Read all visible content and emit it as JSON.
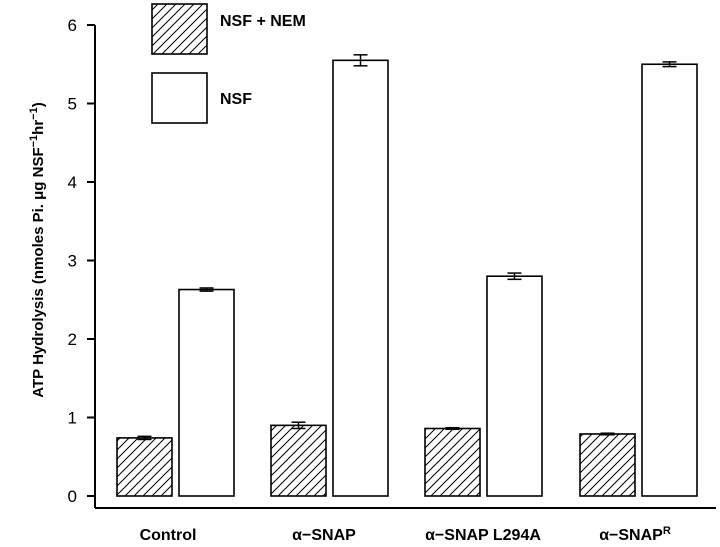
{
  "chart_data": {
    "type": "bar",
    "categories": [
      "Control",
      "α−SNAP",
      "α−SNAP L294A",
      "α−SNAP"
    ],
    "category_superscripts": [
      "",
      "",
      "",
      "R"
    ],
    "series": [
      {
        "name": "NSF + NEM",
        "pattern": "hatched",
        "values": [
          0.74,
          0.9,
          0.86,
          0.79
        ],
        "errors": [
          0.02,
          0.04,
          0.01,
          0.01
        ]
      },
      {
        "name": "NSF",
        "pattern": "open",
        "values": [
          2.63,
          5.55,
          2.8,
          5.5
        ],
        "errors": [
          0.02,
          0.07,
          0.04,
          0.03
        ]
      }
    ],
    "ylabel": "ATP Hydrolysis (nmoles Pi. μg NSF",
    "ylabel_sup1": "−1",
    "ylabel_mid": "hr",
    "ylabel_sup2": "−1",
    "ylabel_end": ")",
    "ylim": [
      0,
      6
    ],
    "yticks": [
      0,
      1,
      2,
      3,
      4,
      5,
      6
    ],
    "grid": false,
    "legend_position": "top-left",
    "colors": {
      "bar_stroke": "#000000",
      "bar_fill": "#ffffff",
      "hatch": "#000000"
    }
  }
}
